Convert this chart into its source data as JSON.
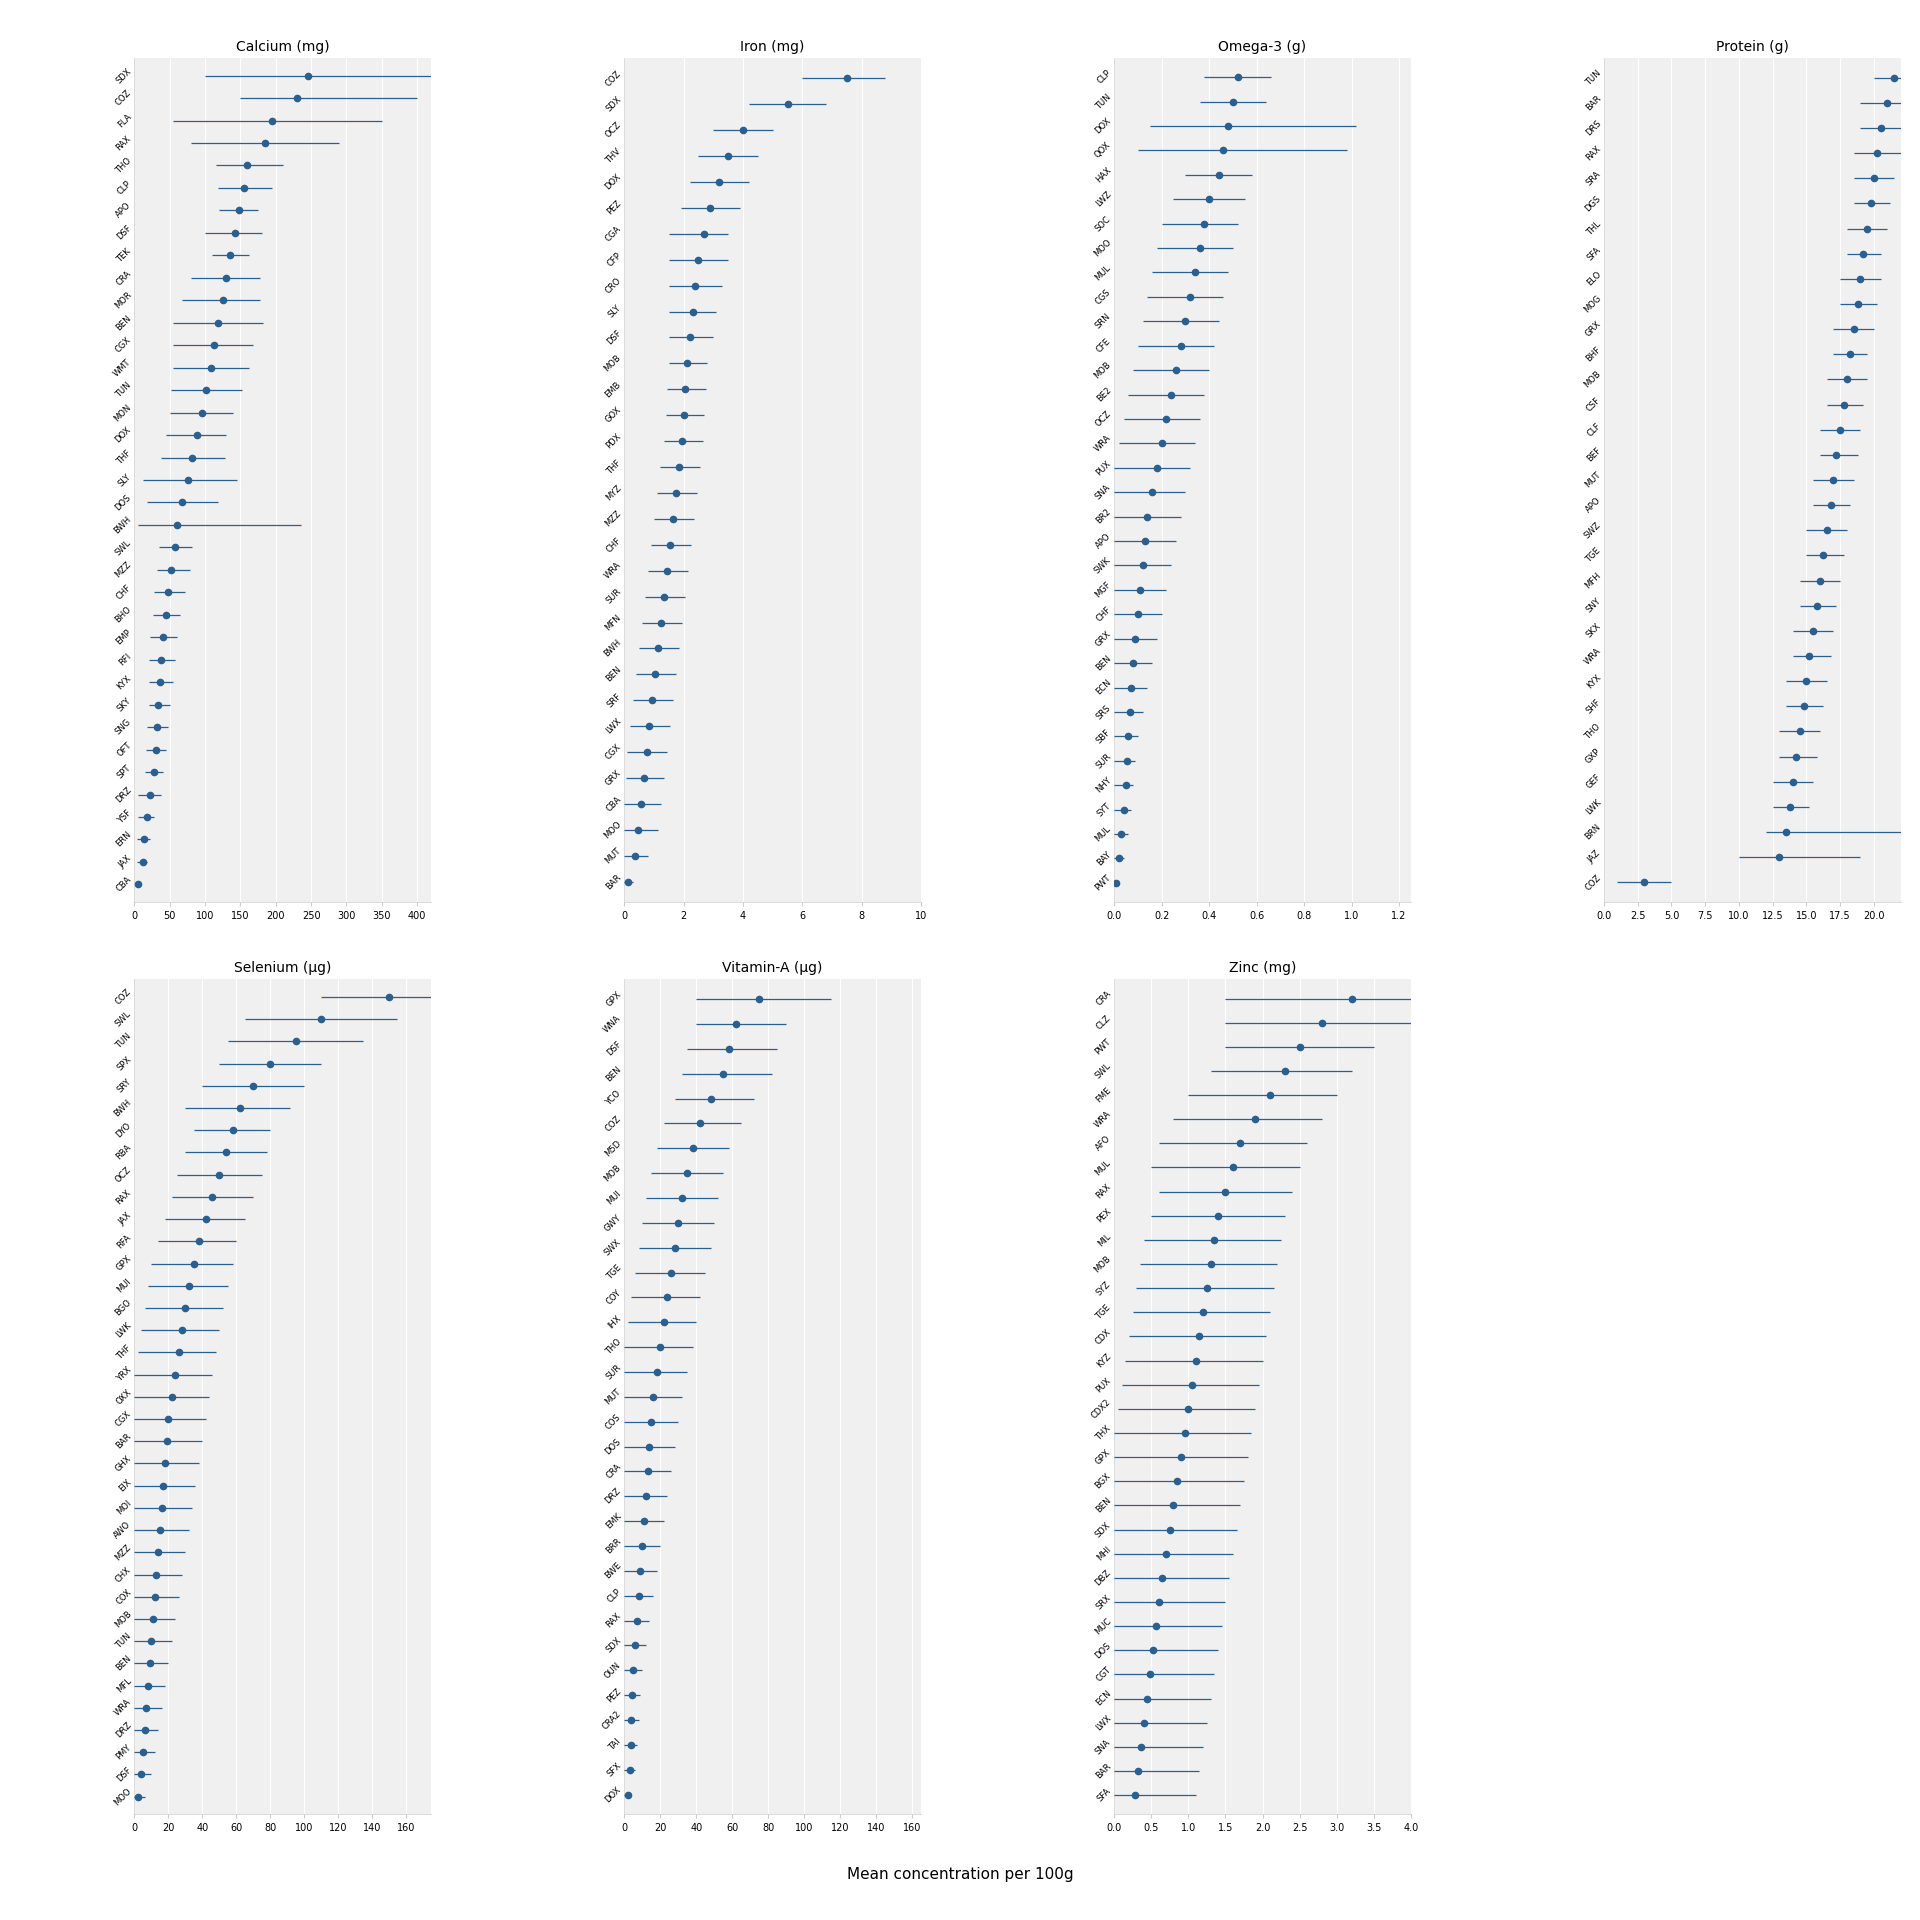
{
  "background_color": "#f0f0f0",
  "dot_color": "#2b5f8e",
  "line_color": "#2b5f8e",
  "grid_color": "#ffffff",
  "bottom_label": "Mean concentration per 100g",
  "subplots": {
    "Calcium (mg)": {
      "species": [
        "SDX",
        "COZ",
        "FLA",
        "RAX",
        "THO",
        "CLP",
        "APO",
        "DSF",
        "TEK",
        "CRA",
        "MOR",
        "BEN",
        "CGX",
        "WMT",
        "TUN",
        "MON",
        "DOX",
        "THF",
        "SLY",
        "DOS",
        "BWH",
        "SWL",
        "MZZ",
        "CHF",
        "BHO",
        "EMP",
        "RFI",
        "KYX",
        "SKY",
        "SNG",
        "OFT",
        "SPT",
        "DRZ",
        "YSF",
        "ERN",
        "JAX",
        "CBA"
      ],
      "medians": [
        245,
        230,
        195,
        185,
        160,
        155,
        148,
        142,
        135,
        130,
        125,
        118,
        112,
        108,
        102,
        96,
        88,
        82,
        76,
        68,
        60,
        58,
        52,
        48,
        44,
        40,
        38,
        36,
        34,
        32,
        30,
        28,
        22,
        18,
        14,
        12,
        5
      ],
      "ci_low": [
        100,
        150,
        55,
        80,
        115,
        118,
        120,
        100,
        110,
        80,
        68,
        55,
        55,
        55,
        52,
        50,
        45,
        38,
        12,
        18,
        5,
        35,
        32,
        28,
        26,
        22,
        20,
        20,
        20,
        18,
        16,
        15,
        5,
        5,
        4,
        4,
        2
      ],
      "ci_high": [
        600,
        400,
        350,
        290,
        210,
        195,
        175,
        180,
        162,
        178,
        178,
        182,
        168,
        162,
        152,
        140,
        130,
        128,
        145,
        118,
        235,
        82,
        78,
        72,
        65,
        60,
        58,
        54,
        50,
        48,
        44,
        40,
        38,
        28,
        22,
        18,
        10
      ],
      "xlim": [
        0,
        420
      ]
    },
    "Iron (mg)": {
      "species": [
        "COZ",
        "SDX",
        "OCZ",
        "THV",
        "DOX",
        "PEZ",
        "CGA",
        "CFP",
        "CRO",
        "SLY",
        "DSF",
        "MOB",
        "EMB",
        "GOX",
        "PDX",
        "THF",
        "MYZ",
        "MZZ",
        "CHF",
        "WRA",
        "SUR",
        "MFN",
        "BWH",
        "BEN",
        "SRF",
        "LWX",
        "CGX",
        "GRX",
        "CBA",
        "MOO",
        "MUT",
        "BAR"
      ],
      "medians": [
        7.5,
        5.5,
        4.0,
        3.5,
        3.2,
        2.9,
        2.7,
        2.5,
        2.4,
        2.3,
        2.2,
        2.1,
        2.05,
        2.0,
        1.95,
        1.85,
        1.75,
        1.65,
        1.55,
        1.45,
        1.35,
        1.25,
        1.15,
        1.05,
        0.95,
        0.85,
        0.75,
        0.65,
        0.55,
        0.45,
        0.35,
        0.12
      ],
      "ci_low": [
        6.0,
        4.2,
        3.0,
        2.5,
        2.2,
        1.9,
        1.5,
        1.5,
        1.5,
        1.5,
        1.5,
        1.5,
        1.45,
        1.4,
        1.35,
        1.2,
        1.1,
        1.0,
        0.9,
        0.8,
        0.7,
        0.6,
        0.5,
        0.4,
        0.3,
        0.2,
        0.1,
        0.05,
        0.0,
        0.0,
        0.0,
        0.0
      ],
      "ci_high": [
        8.8,
        6.8,
        5.0,
        4.5,
        4.2,
        3.9,
        3.5,
        3.5,
        3.3,
        3.1,
        3.0,
        2.8,
        2.75,
        2.7,
        2.65,
        2.55,
        2.45,
        2.35,
        2.25,
        2.15,
        2.05,
        1.95,
        1.85,
        1.75,
        1.65,
        1.55,
        1.45,
        1.35,
        1.25,
        1.15,
        0.8,
        0.3
      ],
      "xlim": [
        0.0,
        10.0
      ]
    },
    "Omega-3 (g)": {
      "species": [
        "CLP",
        "TUN",
        "DOX",
        "QOX",
        "HAX",
        "LWZ",
        "SOC",
        "MOO",
        "MUL",
        "CGS",
        "SRN",
        "CFE",
        "MOB",
        "BE2",
        "OCZ",
        "WRA",
        "PUX",
        "SNA",
        "BR2",
        "APO",
        "SWK",
        "MGF",
        "CHF",
        "GRX",
        "BEN",
        "ECN",
        "SRS",
        "SBF",
        "SUR",
        "NHY",
        "SYT",
        "MUL",
        "BAY",
        "PWT"
      ],
      "medians": [
        0.52,
        0.5,
        0.48,
        0.46,
        0.44,
        0.4,
        0.38,
        0.36,
        0.34,
        0.32,
        0.3,
        0.28,
        0.26,
        0.24,
        0.22,
        0.2,
        0.18,
        0.16,
        0.14,
        0.13,
        0.12,
        0.11,
        0.1,
        0.09,
        0.08,
        0.07,
        0.065,
        0.06,
        0.055,
        0.05,
        0.04,
        0.03,
        0.02,
        0.01
      ],
      "ci_low": [
        0.38,
        0.36,
        0.15,
        0.1,
        0.3,
        0.25,
        0.2,
        0.18,
        0.16,
        0.14,
        0.12,
        0.1,
        0.08,
        0.06,
        0.04,
        0.02,
        0.0,
        0.0,
        0.0,
        0.0,
        0.0,
        0.0,
        0.0,
        0.0,
        0.0,
        0.0,
        0.0,
        0.0,
        0.0,
        0.0,
        0.0,
        0.0,
        0.0,
        0.0
      ],
      "ci_high": [
        0.66,
        0.64,
        1.02,
        0.98,
        0.58,
        0.55,
        0.52,
        0.5,
        0.48,
        0.46,
        0.44,
        0.42,
        0.4,
        0.38,
        0.36,
        0.34,
        0.32,
        0.3,
        0.28,
        0.26,
        0.24,
        0.22,
        0.2,
        0.18,
        0.16,
        0.14,
        0.12,
        0.1,
        0.09,
        0.08,
        0.07,
        0.06,
        0.04,
        0.02
      ],
      "xlim": [
        0.0,
        1.25
      ]
    },
    "Protein (g)": {
      "species": [
        "TUN",
        "BAR",
        "DRS",
        "RAX",
        "SRA",
        "DGS",
        "THL",
        "SFA",
        "ELO",
        "MOG",
        "GRX",
        "BHF",
        "MOB",
        "CSF",
        "CLF",
        "BEF",
        "MUT",
        "APO",
        "SWZ",
        "TGE",
        "MFH",
        "SNY",
        "SKX",
        "WRA",
        "KYX",
        "SHF",
        "THO",
        "GXP",
        "GEF",
        "LWK",
        "BRN",
        "JAZ",
        "COZ"
      ],
      "medians": [
        21.5,
        21.0,
        20.5,
        20.2,
        20.0,
        19.8,
        19.5,
        19.2,
        19.0,
        18.8,
        18.5,
        18.2,
        18.0,
        17.8,
        17.5,
        17.2,
        17.0,
        16.8,
        16.5,
        16.2,
        16.0,
        15.8,
        15.5,
        15.2,
        15.0,
        14.8,
        14.5,
        14.2,
        14.0,
        13.8,
        13.5,
        13.0,
        3.0
      ],
      "ci_low": [
        20.0,
        19.0,
        19.0,
        18.5,
        18.5,
        18.5,
        18.0,
        18.0,
        17.5,
        17.5,
        17.0,
        17.0,
        16.5,
        16.5,
        16.0,
        16.0,
        15.5,
        15.5,
        15.0,
        15.0,
        14.5,
        14.5,
        14.0,
        14.0,
        13.5,
        13.5,
        13.0,
        13.0,
        12.5,
        12.5,
        12.0,
        10.0,
        1.0
      ],
      "ci_high": [
        23.0,
        23.0,
        22.0,
        22.0,
        21.5,
        21.2,
        21.0,
        20.5,
        20.5,
        20.2,
        20.0,
        19.5,
        19.5,
        19.2,
        19.0,
        18.8,
        18.5,
        18.2,
        18.0,
        17.8,
        17.5,
        17.2,
        17.0,
        16.8,
        16.5,
        16.2,
        16.0,
        15.8,
        15.5,
        15.2,
        27.0,
        19.0,
        5.0
      ],
      "xlim": [
        0,
        22
      ]
    },
    "Selenium (μg)": {
      "species": [
        "COZ",
        "SWL",
        "TUN",
        "SPX",
        "SRY",
        "BWH",
        "DYO",
        "RBA",
        "OCZ",
        "RAX",
        "JAX",
        "RFA",
        "GPX",
        "MUI",
        "BGO",
        "LWK",
        "THF",
        "YRX",
        "OXX",
        "CGX",
        "BAR",
        "GHX",
        "EIX",
        "MOI",
        "AWO",
        "MZZ",
        "CHX",
        "COX",
        "MOB",
        "TUN",
        "BEN",
        "MFL",
        "WRA",
        "DRZ",
        "PMY",
        "DSF",
        "MOO"
      ],
      "medians": [
        150,
        110,
        95,
        80,
        70,
        62,
        58,
        54,
        50,
        46,
        42,
        38,
        35,
        32,
        30,
        28,
        26,
        24,
        22,
        20,
        19,
        18,
        17,
        16,
        15,
        14,
        13,
        12,
        11,
        10,
        9,
        8,
        7,
        6,
        5,
        4,
        2
      ],
      "ci_low": [
        110,
        65,
        55,
        50,
        40,
        30,
        35,
        30,
        25,
        22,
        18,
        14,
        10,
        8,
        6,
        4,
        2,
        0,
        0,
        0,
        0,
        0,
        0,
        0,
        0,
        0,
        0,
        0,
        0,
        0,
        0,
        0,
        0,
        0,
        0,
        0,
        0
      ],
      "ci_high": [
        190,
        155,
        135,
        110,
        100,
        92,
        80,
        78,
        75,
        70,
        65,
        60,
        58,
        55,
        52,
        50,
        48,
        46,
        44,
        42,
        40,
        38,
        36,
        34,
        32,
        30,
        28,
        26,
        24,
        22,
        20,
        18,
        16,
        14,
        12,
        10,
        6
      ],
      "xlim": [
        0,
        175
      ]
    },
    "Vitamin-A (μg)": {
      "species": [
        "GPX",
        "WNA",
        "DSF",
        "BEN",
        "YCO",
        "COZ",
        "M5D",
        "MOB",
        "MUI",
        "GWY",
        "SWX",
        "TGE",
        "COY",
        "IHX",
        "THO",
        "SUR",
        "MUT",
        "COS",
        "DOS",
        "CRA",
        "DRZ",
        "EMK",
        "BRR",
        "BWE",
        "CLP",
        "RAX",
        "SDX",
        "OUN",
        "PEZ",
        "CRA2",
        "TAI",
        "SFX",
        "DOX"
      ],
      "medians": [
        75,
        62,
        58,
        55,
        48,
        42,
        38,
        35,
        32,
        30,
        28,
        26,
        24,
        22,
        20,
        18,
        16,
        15,
        14,
        13,
        12,
        11,
        10,
        9,
        8,
        7,
        6,
        5,
        4.5,
        4,
        3.5,
        3,
        2
      ],
      "ci_low": [
        40,
        40,
        35,
        32,
        28,
        22,
        18,
        15,
        12,
        10,
        8,
        6,
        4,
        2,
        0,
        0,
        0,
        0,
        0,
        0,
        0,
        0,
        0,
        0,
        0,
        0,
        0,
        0,
        0,
        0,
        0,
        0,
        0
      ],
      "ci_high": [
        115,
        90,
        85,
        82,
        72,
        65,
        58,
        55,
        52,
        50,
        48,
        45,
        42,
        40,
        38,
        35,
        32,
        30,
        28,
        26,
        24,
        22,
        20,
        18,
        16,
        14,
        12,
        10,
        9,
        8,
        7,
        6,
        4
      ],
      "xlim": [
        0,
        165
      ]
    },
    "Zinc (mg)": {
      "species": [
        "CRA",
        "CLZ",
        "PWT",
        "SWL",
        "FME",
        "WRA",
        "AFO",
        "MUL",
        "RAX",
        "PEX",
        "MIL",
        "MOB",
        "SYZ",
        "TGE",
        "CDX",
        "KYZ",
        "PUX",
        "CDX2",
        "THX",
        "GPX",
        "BGX",
        "BEN",
        "SDX",
        "MHI",
        "DBZ",
        "SRX",
        "MUC",
        "DOS",
        "CGT",
        "ECN",
        "LWX",
        "SNA",
        "BAR",
        "SFA"
      ],
      "medians": [
        3.2,
        2.8,
        2.5,
        2.3,
        2.1,
        1.9,
        1.7,
        1.6,
        1.5,
        1.4,
        1.35,
        1.3,
        1.25,
        1.2,
        1.15,
        1.1,
        1.05,
        1.0,
        0.95,
        0.9,
        0.85,
        0.8,
        0.75,
        0.7,
        0.65,
        0.6,
        0.56,
        0.52,
        0.48,
        0.44,
        0.4,
        0.36,
        0.32,
        0.28
      ],
      "ci_low": [
        1.5,
        1.5,
        1.5,
        1.3,
        1.0,
        0.8,
        0.6,
        0.5,
        0.6,
        0.5,
        0.4,
        0.35,
        0.3,
        0.25,
        0.2,
        0.15,
        0.1,
        0.05,
        0.0,
        0.0,
        0.0,
        0.0,
        0.0,
        0.0,
        0.0,
        0.0,
        0.0,
        0.0,
        0.0,
        0.0,
        0.0,
        0.0,
        0.0,
        0.0
      ],
      "ci_high": [
        4.8,
        4.2,
        3.5,
        3.2,
        3.0,
        2.8,
        2.6,
        2.5,
        2.4,
        2.3,
        2.25,
        2.2,
        2.15,
        2.1,
        2.05,
        2.0,
        1.95,
        1.9,
        1.85,
        1.8,
        1.75,
        1.7,
        1.65,
        1.6,
        1.55,
        1.5,
        1.45,
        1.4,
        1.35,
        1.3,
        1.25,
        1.2,
        1.15,
        1.1
      ],
      "xlim": [
        0,
        4.0
      ]
    }
  }
}
